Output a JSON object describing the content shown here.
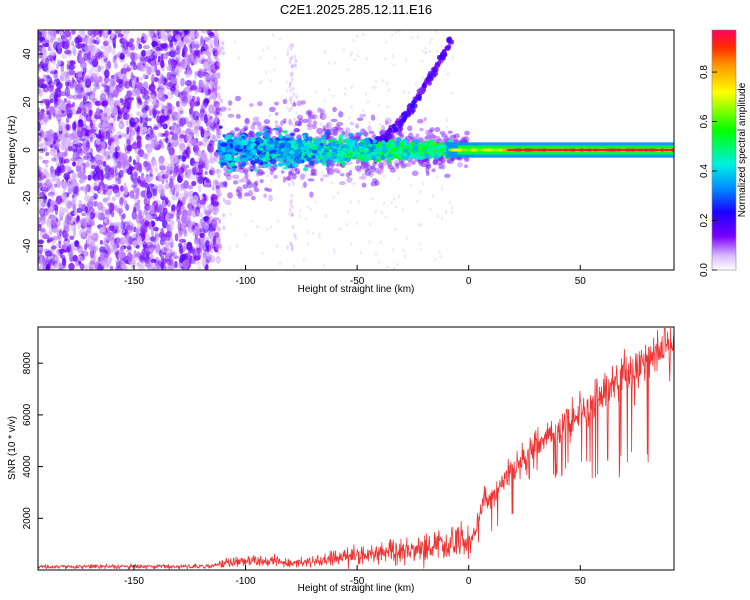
{
  "title": "C2E1.2025.285.12.11.E16",
  "chart_data": [
    {
      "type": "heatmap",
      "title": "C2E1.2025.285.12.11.E16",
      "xlabel": "Height of straight line (km)",
      "ylabel": "Frequency (Hz)",
      "xlim": [
        -193,
        92
      ],
      "ylim": [
        -50,
        50
      ],
      "xticks": [
        -150,
        -100,
        -50,
        0,
        50
      ],
      "yticks": [
        -40,
        -20,
        0,
        20,
        40
      ],
      "description": "Noise-dominated speckle for x < -112 km; concentrated signal near 0 Hz from -112 km onward, narrowing to a strong line at 0 Hz beyond about 0 km; a weaker branch rising from ~0 Hz at -45 km to ~48 Hz at -7 km.",
      "colorbar": {
        "label": "Normalized spectral amplitude",
        "range": [
          0,
          0.97
        ],
        "ticks": [
          0.0,
          0.2,
          0.4,
          0.6,
          0.8
        ]
      }
    },
    {
      "type": "line",
      "xlabel": "Height of straight line (km)",
      "ylabel": "SNR (10 * v/v)",
      "xlim": [
        -193,
        92
      ],
      "ylim": [
        0,
        9400
      ],
      "xticks": [
        -150,
        -100,
        -50,
        0,
        50
      ],
      "yticks": [
        2000,
        4000,
        6000,
        8000
      ],
      "series": [
        {
          "name": "SNR",
          "color": "#ee3333",
          "x": [
            -193,
            -170,
            -150,
            -130,
            -115,
            -110,
            -100,
            -90,
            -80,
            -70,
            -60,
            -50,
            -40,
            -30,
            -20,
            -10,
            -3,
            0,
            3,
            7,
            10,
            15,
            20,
            30,
            40,
            50,
            60,
            70,
            80,
            85,
            92
          ],
          "y": [
            120,
            130,
            140,
            140,
            160,
            300,
            350,
            350,
            250,
            300,
            500,
            550,
            650,
            700,
            900,
            1000,
            1050,
            1100,
            1500,
            2800,
            2700,
            3400,
            4000,
            4800,
            5500,
            6000,
            6800,
            7500,
            8100,
            8600,
            8800
          ]
        }
      ]
    }
  ]
}
